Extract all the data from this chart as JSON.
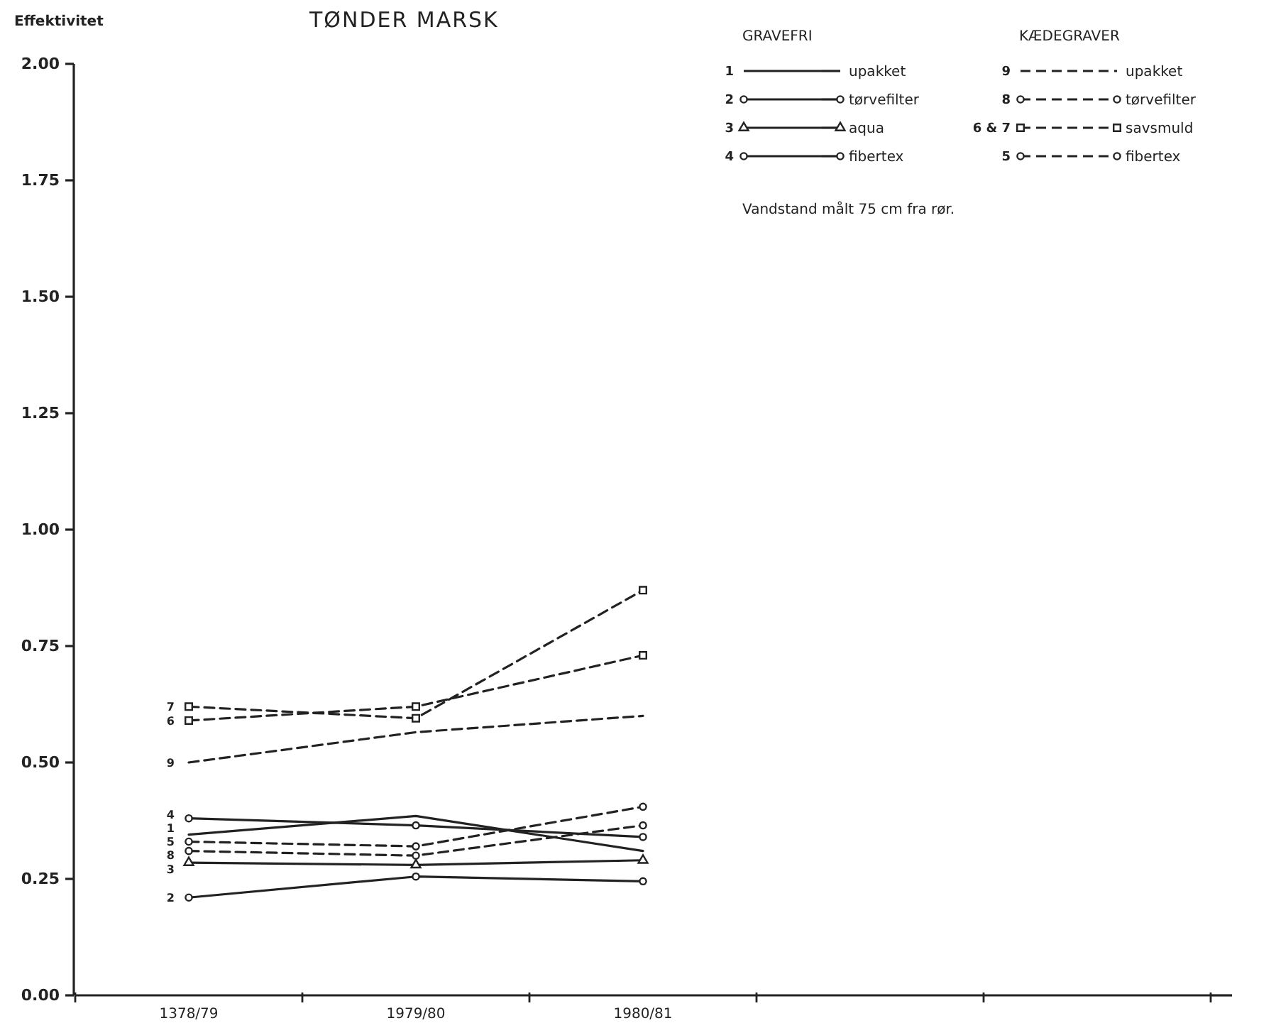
{
  "chart_data": {
    "type": "line",
    "title": "TØNDER MARSK",
    "ylabel": "Effektivitet",
    "categories": [
      "1378/79",
      "1979/80",
      "1980/81",
      null,
      null
    ],
    "ylim": [
      0,
      2
    ],
    "yticks": [
      {
        "value": 0,
        "label": "0.00"
      },
      {
        "value": 0.25,
        "label": "0.25"
      },
      {
        "value": 0.5,
        "label": "0.50"
      },
      {
        "value": 0.75,
        "label": "0.75"
      },
      {
        "value": 1,
        "label": "1.00"
      },
      {
        "value": 1.25,
        "label": "1.25"
      },
      {
        "value": 1.5,
        "label": "1.50"
      },
      {
        "value": 1.75,
        "label": "1.75"
      },
      {
        "value": 2,
        "label": "2.00"
      }
    ],
    "legend": "top right",
    "series": [
      {
        "name": "upakket",
        "color": "#222222",
        "line_style": "solid",
        "marker": "none",
        "values": [
          0.345,
          0.385,
          0.31,
          null,
          null
        ]
      },
      {
        "name": "tørvefilter",
        "color": "#222222",
        "line_style": "solid",
        "marker": "circle",
        "values": [
          0.21,
          0.255,
          0.245,
          null,
          null
        ]
      },
      {
        "name": "aqua",
        "color": "#222222",
        "line_style": "solid",
        "marker": "triangle",
        "values": [
          0.285,
          0.28,
          0.29,
          null,
          null
        ]
      },
      {
        "name": "fibertex",
        "color": "#222222",
        "line_style": "solid",
        "marker": "circle",
        "values": [
          0.38,
          0.365,
          0.34,
          null,
          null
        ]
      },
      {
        "name": "upakket",
        "color": "#222222",
        "line_style": "dashed",
        "marker": "none",
        "values": [
          0.5,
          0.565,
          0.6,
          null,
          null
        ]
      },
      {
        "name": "tørvefilter",
        "color": "#222222",
        "line_style": "dashed",
        "marker": "circle",
        "values": [
          0.31,
          0.3,
          0.365,
          null,
          null
        ]
      },
      {
        "name": "savsmuld",
        "color": "#222222",
        "line_style": "dashed",
        "marker": "square",
        "values": [
          0.59,
          0.62,
          0.73,
          null,
          null
        ]
      },
      {
        "color": "#222222",
        "line_style": "dashed",
        "marker": "square",
        "values": [
          0.62,
          0.595,
          0.87,
          null,
          null
        ]
      },
      {
        "name": "fibertex",
        "color": "#222222",
        "line_style": "dashed",
        "marker": "circle",
        "values": [
          0.33,
          0.32,
          0.405,
          null,
          null
        ]
      }
    ],
    "annotations": [
      "GRAVEFRI",
      "KÆDEGRAVER",
      "1",
      "2",
      "3",
      "4",
      "9",
      "8",
      "6 & 7",
      "5",
      "Vandstand målt 75 cm fra rør.",
      {
        "text": "7",
        "x": "1378/79",
        "y": 0.62
      },
      {
        "text": "6",
        "x": "1378/79",
        "y": 0.59
      },
      {
        "text": "9",
        "x": "1378/79",
        "y": 0.5
      },
      {
        "text": "4",
        "x": "1378/79",
        "y": 0.38
      },
      {
        "text": "1",
        "x": "1378/79",
        "y": 0.345
      },
      {
        "text": "5",
        "x": "1378/79",
        "y": 0.33
      },
      {
        "text": "8",
        "x": "1378/79",
        "y": 0.31
      },
      {
        "text": "3",
        "x": "1378/79",
        "y": 0.285
      },
      {
        "text": "2",
        "x": "1378/79",
        "y": 0.21
      }
    ]
  }
}
